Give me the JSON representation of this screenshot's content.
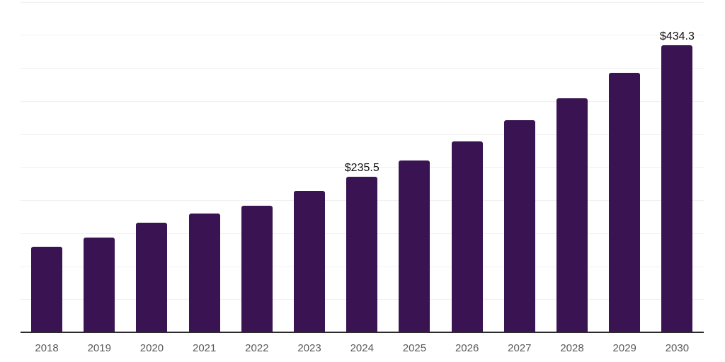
{
  "chart_data": {
    "type": "bar",
    "title": "",
    "xlabel": "",
    "ylabel": "",
    "categories": [
      "2018",
      "2019",
      "2020",
      "2021",
      "2022",
      "2023",
      "2024",
      "2025",
      "2026",
      "2027",
      "2028",
      "2029",
      "2030"
    ],
    "values": [
      129.2,
      143.1,
      165.5,
      179.4,
      191.9,
      213.4,
      235.5,
      260.1,
      288.5,
      320.5,
      353.6,
      392.7,
      434.3
    ],
    "data_labels": [
      {
        "index": 6,
        "category": "2024",
        "text": "$235.5"
      },
      {
        "index": 12,
        "category": "2030",
        "text": "$434.3"
      }
    ],
    "ylim": [
      0,
      500
    ],
    "gridline_step": 50,
    "grid": true,
    "legend": false,
    "y_tick_labels_visible": false,
    "colors": {
      "bar": "#3a1352",
      "gridline": "#f0f0f0",
      "axis_line": "#2b2b2b",
      "tick_label": "#595959",
      "data_label": "#111111",
      "background": "#ffffff"
    }
  }
}
